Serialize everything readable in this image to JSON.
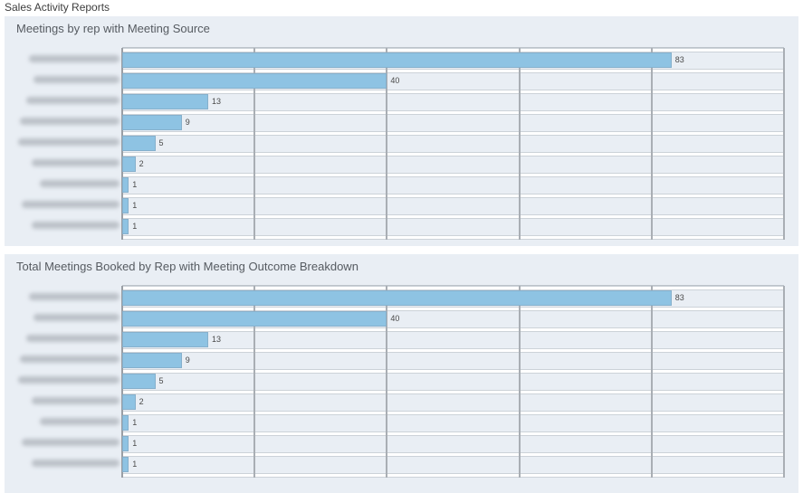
{
  "page": {
    "title": "Sales Activity Reports"
  },
  "colors": {
    "page_bg": "#ffffff",
    "panel_bg": "#e9eef4",
    "bar_fill": "#8ec3e3",
    "gridline": "#a9aeb4",
    "axis_line": "#9a9fa5",
    "row_stripe": "#ffffff",
    "label_mask": "#969ca4",
    "value_text": "#4a4a4a",
    "title_text": "#565b61"
  },
  "charts": [
    {
      "title": "Meetings by rep with Meeting Source",
      "axis": {
        "min": 0,
        "max": 100,
        "gridline_step": 20
      },
      "rows": [
        {
          "value": 83,
          "label_redacted": true,
          "label_mask_width": 100
        },
        {
          "value": 40,
          "label_redacted": true,
          "label_mask_width": 95
        },
        {
          "value": 13,
          "label_redacted": true,
          "label_mask_width": 103
        },
        {
          "value": 9,
          "label_redacted": true,
          "label_mask_width": 110
        },
        {
          "value": 5,
          "label_redacted": true,
          "label_mask_width": 112
        },
        {
          "value": 2,
          "label_redacted": true,
          "label_mask_width": 97
        },
        {
          "value": 1,
          "label_redacted": true,
          "label_mask_width": 88
        },
        {
          "value": 1,
          "label_redacted": true,
          "label_mask_width": 108
        },
        {
          "value": 1,
          "label_redacted": true,
          "label_mask_width": 97
        }
      ]
    },
    {
      "title": "Total Meetings Booked by Rep with Meeting Outcome Breakdown",
      "axis": {
        "min": 0,
        "max": 100,
        "gridline_step": 20
      },
      "rows": [
        {
          "value": 83,
          "label_redacted": true,
          "label_mask_width": 100
        },
        {
          "value": 40,
          "label_redacted": true,
          "label_mask_width": 95
        },
        {
          "value": 13,
          "label_redacted": true,
          "label_mask_width": 103
        },
        {
          "value": 9,
          "label_redacted": true,
          "label_mask_width": 110
        },
        {
          "value": 5,
          "label_redacted": true,
          "label_mask_width": 112
        },
        {
          "value": 2,
          "label_redacted": true,
          "label_mask_width": 97
        },
        {
          "value": 1,
          "label_redacted": true,
          "label_mask_width": 88
        },
        {
          "value": 1,
          "label_redacted": true,
          "label_mask_width": 108
        },
        {
          "value": 1,
          "label_redacted": true,
          "label_mask_width": 97
        }
      ]
    }
  ],
  "chart_data": [
    {
      "type": "bar",
      "orientation": "horizontal",
      "title": "Meetings by rep with Meeting Source",
      "categories": [
        "[redacted rep 1]",
        "[redacted rep 2]",
        "[redacted rep 3]",
        "[redacted rep 4]",
        "[redacted rep 5]",
        "[redacted rep 6]",
        "[redacted rep 7]",
        "[redacted rep 8]",
        "[redacted rep 9]"
      ],
      "values": [
        83,
        40,
        13,
        9,
        5,
        2,
        1,
        1,
        1
      ],
      "xlabel": "",
      "ylabel": "",
      "xlim": [
        0,
        100
      ],
      "gridline_step": 20,
      "grid": true,
      "legend": false,
      "data_labels": true
    },
    {
      "type": "bar",
      "orientation": "horizontal",
      "title": "Total Meetings Booked by Rep with Meeting Outcome Breakdown",
      "categories": [
        "[redacted rep 1]",
        "[redacted rep 2]",
        "[redacted rep 3]",
        "[redacted rep 4]",
        "[redacted rep 5]",
        "[redacted rep 6]",
        "[redacted rep 7]",
        "[redacted rep 8]",
        "[redacted rep 9]"
      ],
      "values": [
        83,
        40,
        13,
        9,
        5,
        2,
        1,
        1,
        1
      ],
      "xlabel": "",
      "ylabel": "",
      "xlim": [
        0,
        100
      ],
      "gridline_step": 20,
      "grid": true,
      "legend": false,
      "data_labels": true
    }
  ]
}
